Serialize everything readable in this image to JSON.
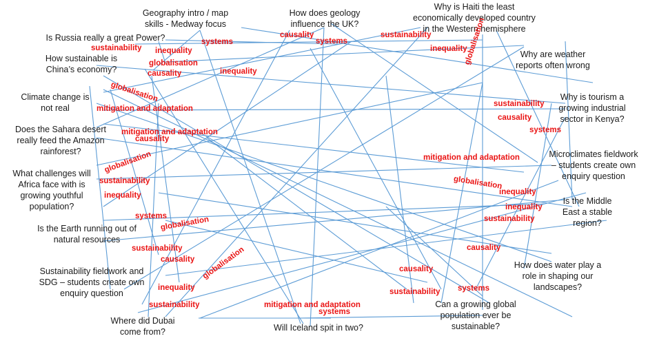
{
  "colors": {
    "line": "#5b9bd5",
    "concept": "#ea1414",
    "question": "#1a1a1a"
  },
  "questions": [
    "Geography intro / map\nskills - Medway focus",
    "How does geology\ninfluence the UK?",
    "Why is Haiti the least\neconomically developed country\nin the Western hemisphere",
    "Is Russia really a great Power?",
    "How sustainable is\nChina’s economy?",
    "Why are weather\nreports often wrong",
    "Climate change is\nnot real",
    "Why is tourism a\ngrowing industrial\nsector in Kenya?",
    "Does the Sahara desert\nreally feed the Amazon\nrainforest?",
    "Microclimates fieldwork\n– students create own\nenquiry question",
    "What challenges will\nAfrica face with is\ngrowing youthful\npopulation?",
    "Is the Middle\nEast a stable\nregion?",
    "Is the Earth running out of\nnatural resources",
    "How does water play a\nrole in shaping our\nlandscapes?",
    "Sustainability fieldwork and\nSDG – students create own\nenquiry question",
    "Can a growing global\npopulation ever be\nsustainable?",
    "Where did Dubai\ncome from?",
    "Will Iceland spit in two?"
  ],
  "concepts": [
    "causality",
    "sustainability",
    "systems",
    "systems",
    "sustainability",
    "inequality",
    "inequality",
    "globalisation",
    "globalisation",
    "causality",
    "inequality",
    "globalisation",
    "mitigation and adaptation",
    "sustainability",
    "causality",
    "systems",
    "mitigation and adaptation",
    "causality",
    "mitigation and adaptation",
    "globalisation",
    "globalisation",
    "sustainability",
    "inequality",
    "inequality",
    "inequality",
    "systems",
    "globalisation",
    "sustainability",
    "sustainability",
    "causality",
    "causality",
    "globalisation",
    "causality",
    "inequality",
    "sustainability",
    "systems",
    "sustainability",
    "mitigation and adaptation",
    "systems"
  ]
}
